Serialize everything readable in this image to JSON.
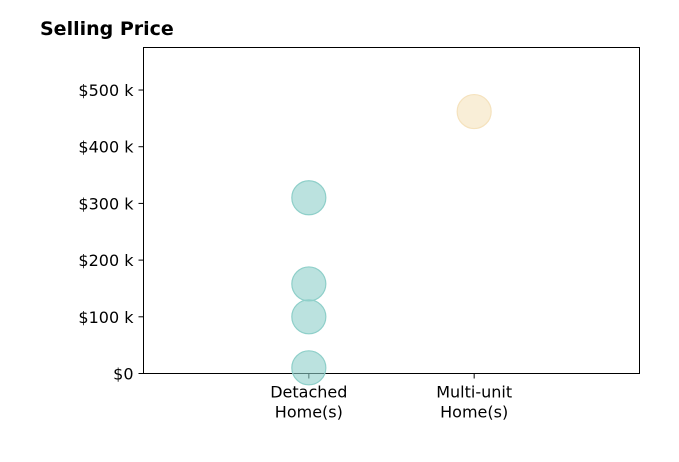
{
  "chart_data": {
    "type": "scatter",
    "title": "Selling Price",
    "xlabel": "",
    "ylabel": "",
    "categories": [
      [
        "Detached",
        "Home(s)"
      ],
      [
        "Multi-unit",
        "Home(s)"
      ]
    ],
    "category_axis_range": [
      -1,
      2
    ],
    "ylim": [
      0,
      575000
    ],
    "yticks": [
      0,
      100000,
      200000,
      300000,
      400000,
      500000
    ],
    "ytick_labels": [
      "$0",
      "$100 k",
      "$200 k",
      "$300 k",
      "$400 k",
      "$500 k"
    ],
    "grid": false,
    "legend": "none",
    "series": [
      {
        "category": 0,
        "color": "#8ecfc9",
        "edge_color": "#8ecfc9",
        "values": [
          10000,
          100000,
          158000,
          310000
        ]
      },
      {
        "category": 1,
        "color": "#f5e2bd",
        "edge_color": "#f5e2bd",
        "values": [
          462000
        ]
      }
    ]
  }
}
